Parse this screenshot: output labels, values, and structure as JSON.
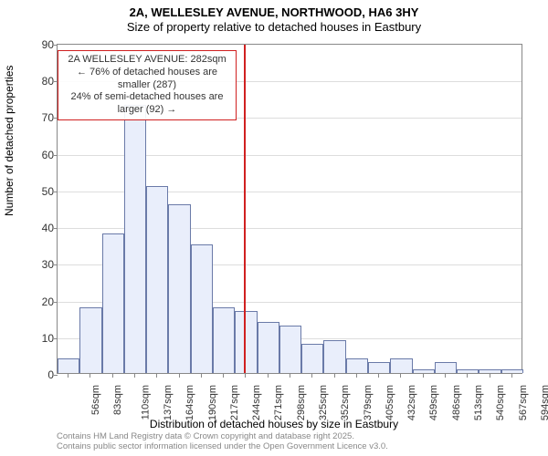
{
  "title_line1": "2A, WELLESLEY AVENUE, NORTHWOOD, HA6 3HY",
  "title_line2": "Size of property relative to detached houses in Eastbury",
  "x_axis_label": "Distribution of detached houses by size in Eastbury",
  "y_axis_label": "Number of detached properties",
  "copyright_line1": "Contains HM Land Registry data © Crown copyright and database right 2025.",
  "copyright_line2": "Contains public sector information licensed under the Open Government Licence v3.0.",
  "chart": {
    "type": "histogram",
    "ylim": [
      0,
      90
    ],
    "ytick_step": 10,
    "bar_fill": "#e9eefb",
    "bar_stroke": "#6a7aa8",
    "grid_color": "#dddddd",
    "axis_color": "#888888",
    "text_color": "#333333",
    "background_color": "#ffffff",
    "x_labels": [
      "56sqm",
      "83sqm",
      "110sqm",
      "137sqm",
      "164sqm",
      "190sqm",
      "217sqm",
      "244sqm",
      "271sqm",
      "298sqm",
      "325sqm",
      "352sqm",
      "379sqm",
      "405sqm",
      "432sqm",
      "459sqm",
      "486sqm",
      "513sqm",
      "540sqm",
      "567sqm",
      "594sqm"
    ],
    "values": [
      4,
      18,
      38,
      73,
      51,
      46,
      35,
      18,
      17,
      14,
      13,
      8,
      9,
      4,
      3,
      4,
      1,
      3,
      1,
      1,
      1
    ],
    "highlight_value_index": 8.4,
    "highlight_color": "#d02020"
  },
  "annotation": {
    "line1": "2A WELLESLEY AVENUE: 282sqm",
    "line2": "← 76% of detached houses are smaller (287)",
    "line3": "24% of semi-detached houses are larger (92) →",
    "border_color": "#d02020"
  }
}
